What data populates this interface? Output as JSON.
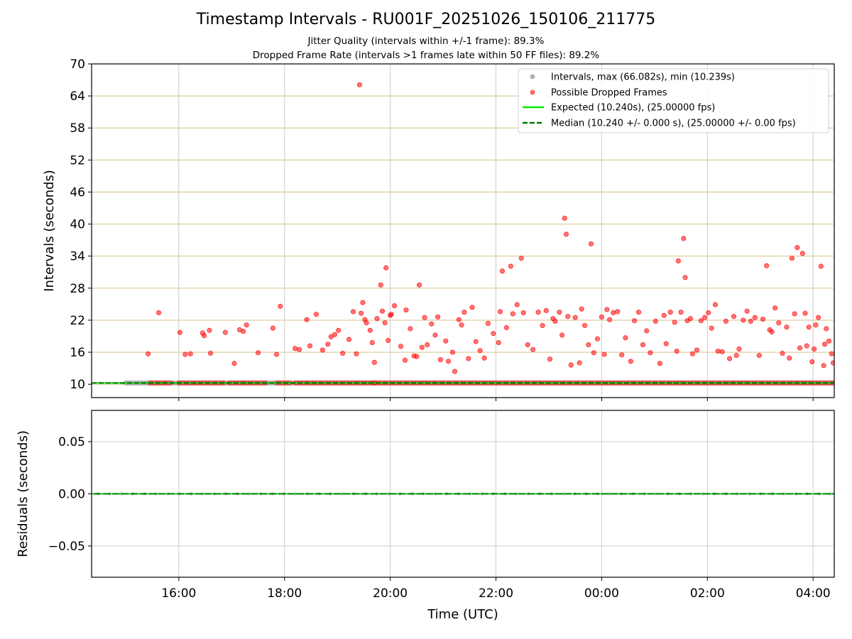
{
  "title": "Timestamp Intervals - RU001F_20251026_150106_211775",
  "subtitle1": "Jitter Quality (intervals within +/-1 frame): 89.3%",
  "subtitle2": "Dropped Frame Rate (intervals >1 frames late within 50 FF files): 89.2%",
  "colors": {
    "intervals": "#a0a0a0",
    "dropped": "#ff0000",
    "expected": "#00ee00",
    "median": "#007800",
    "hgrid_top": "#d4c08a",
    "vgrid": "#cccccc"
  },
  "chart_data": [
    {
      "type": "scatter",
      "name": "intervals-panel",
      "ylabel": "Intervals (seconds)",
      "xlabel": "",
      "xlim_hours": [
        14.35,
        28.4
      ],
      "ylim": [
        7.5,
        70
      ],
      "yticks": [
        10,
        16,
        22,
        28,
        34,
        40,
        46,
        52,
        58,
        64,
        70
      ],
      "ytick_labels": [
        "10",
        "16",
        "22",
        "28",
        "34",
        "40",
        "46",
        "52",
        "58",
        "64",
        "70"
      ],
      "xticks_hours": [
        16,
        18,
        20,
        22,
        24,
        26,
        28
      ],
      "xtick_labels": [
        "16:00",
        "18:00",
        "20:00",
        "22:00",
        "00:00",
        "02:00",
        "04:00"
      ],
      "grid": "both",
      "legend_position": "top-right",
      "legend": [
        "Intervals, max (66.082s), min (10.239s)",
        "Possible Dropped Frames",
        "Expected (10.240s), (25.00000 fps)",
        "Median (10.240 +/- 0.000 s), (25.00000 +/- 0.00 fps)"
      ],
      "expected_value": 10.24,
      "median_value": 10.24,
      "interval_series": {
        "name": "Intervals",
        "x_start_hours": 15.0,
        "x_end_hours": 28.4,
        "value": 10.24
      },
      "dropped_baseline": {
        "name": "Possible Dropped Frames (near expected)",
        "value": 10.24,
        "segments_hours": [
          [
            15.45,
            15.85
          ],
          [
            16.0,
            16.3
          ],
          [
            16.35,
            16.85
          ],
          [
            16.95,
            17.65
          ],
          [
            17.85,
            18.1
          ],
          [
            18.2,
            19.7
          ],
          [
            19.7,
            28.4
          ]
        ]
      },
      "dropped_points": [
        [
          15.42,
          15.7
        ],
        [
          15.62,
          23.4
        ],
        [
          16.02,
          19.7
        ],
        [
          16.12,
          15.6
        ],
        [
          16.22,
          15.7
        ],
        [
          16.45,
          19.6
        ],
        [
          16.48,
          19.1
        ],
        [
          16.58,
          20.1
        ],
        [
          16.6,
          15.8
        ],
        [
          16.88,
          19.7
        ],
        [
          17.05,
          13.9
        ],
        [
          17.15,
          20.2
        ],
        [
          17.22,
          19.9
        ],
        [
          17.28,
          21.1
        ],
        [
          17.5,
          15.9
        ],
        [
          17.78,
          20.5
        ],
        [
          17.85,
          15.6
        ],
        [
          17.92,
          24.6
        ],
        [
          18.2,
          16.7
        ],
        [
          18.28,
          16.5
        ],
        [
          18.42,
          22.1
        ],
        [
          18.48,
          17.2
        ],
        [
          18.6,
          23.1
        ],
        [
          18.72,
          16.4
        ],
        [
          18.82,
          17.5
        ],
        [
          18.88,
          18.9
        ],
        [
          18.95,
          19.3
        ],
        [
          19.02,
          20.1
        ],
        [
          19.1,
          15.8
        ],
        [
          19.22,
          18.4
        ],
        [
          19.3,
          23.6
        ],
        [
          19.36,
          15.7
        ],
        [
          19.42,
          66.1
        ],
        [
          19.45,
          23.3
        ],
        [
          19.48,
          25.3
        ],
        [
          19.52,
          22.1
        ],
        [
          19.55,
          21.5
        ],
        [
          19.62,
          20.1
        ],
        [
          19.66,
          17.8
        ],
        [
          19.7,
          14.1
        ],
        [
          19.75,
          22.3
        ],
        [
          19.82,
          28.6
        ],
        [
          19.85,
          23.7
        ],
        [
          19.9,
          21.5
        ],
        [
          19.92,
          31.8
        ],
        [
          19.96,
          18.2
        ],
        [
          20.0,
          22.9
        ],
        [
          20.02,
          23.1
        ],
        [
          20.08,
          24.7
        ],
        [
          20.2,
          17.1
        ],
        [
          20.28,
          14.5
        ],
        [
          20.3,
          23.9
        ],
        [
          20.38,
          20.4
        ],
        [
          20.45,
          15.3
        ],
        [
          20.5,
          15.2
        ],
        [
          20.55,
          28.6
        ],
        [
          20.6,
          16.9
        ],
        [
          20.65,
          22.5
        ],
        [
          20.7,
          17.4
        ],
        [
          20.78,
          21.3
        ],
        [
          20.85,
          19.2
        ],
        [
          20.9,
          22.6
        ],
        [
          20.95,
          14.6
        ],
        [
          21.05,
          18.1
        ],
        [
          21.1,
          14.3
        ],
        [
          21.18,
          16.0
        ],
        [
          21.22,
          12.4
        ],
        [
          21.3,
          22.1
        ],
        [
          21.35,
          21.1
        ],
        [
          21.4,
          23.5
        ],
        [
          21.48,
          14.8
        ],
        [
          21.55,
          24.4
        ],
        [
          21.62,
          18.0
        ],
        [
          21.7,
          16.3
        ],
        [
          21.78,
          14.9
        ],
        [
          21.85,
          21.4
        ],
        [
          21.95,
          19.5
        ],
        [
          22.05,
          17.8
        ],
        [
          22.08,
          23.6
        ],
        [
          22.12,
          31.2
        ],
        [
          22.2,
          20.6
        ],
        [
          22.28,
          32.1
        ],
        [
          22.32,
          23.2
        ],
        [
          22.4,
          24.9
        ],
        [
          22.48,
          33.6
        ],
        [
          22.52,
          23.4
        ],
        [
          22.6,
          17.4
        ],
        [
          22.7,
          16.5
        ],
        [
          22.8,
          23.5
        ],
        [
          22.88,
          21.0
        ],
        [
          22.95,
          23.8
        ],
        [
          23.02,
          14.7
        ],
        [
          23.08,
          22.3
        ],
        [
          23.12,
          21.8
        ],
        [
          23.2,
          23.5
        ],
        [
          23.25,
          19.2
        ],
        [
          23.3,
          41.1
        ],
        [
          23.33,
          38.1
        ],
        [
          23.36,
          22.7
        ],
        [
          23.42,
          13.6
        ],
        [
          23.5,
          22.5
        ],
        [
          23.58,
          14.0
        ],
        [
          23.62,
          24.1
        ],
        [
          23.68,
          21.0
        ],
        [
          23.75,
          17.4
        ],
        [
          23.8,
          36.3
        ],
        [
          23.85,
          15.9
        ],
        [
          23.92,
          18.5
        ],
        [
          24.0,
          22.6
        ],
        [
          24.05,
          15.6
        ],
        [
          24.1,
          24.0
        ],
        [
          24.15,
          22.1
        ],
        [
          24.22,
          23.4
        ],
        [
          24.3,
          23.6
        ],
        [
          24.38,
          15.5
        ],
        [
          24.45,
          18.7
        ],
        [
          24.55,
          14.3
        ],
        [
          24.62,
          21.9
        ],
        [
          24.7,
          23.5
        ],
        [
          24.78,
          17.4
        ],
        [
          24.85,
          20.0
        ],
        [
          24.92,
          15.9
        ],
        [
          25.02,
          21.8
        ],
        [
          25.1,
          13.9
        ],
        [
          25.18,
          22.9
        ],
        [
          25.22,
          17.6
        ],
        [
          25.3,
          23.5
        ],
        [
          25.38,
          21.6
        ],
        [
          25.42,
          16.2
        ],
        [
          25.45,
          33.1
        ],
        [
          25.5,
          23.5
        ],
        [
          25.55,
          37.3
        ],
        [
          25.58,
          30.0
        ],
        [
          25.62,
          21.9
        ],
        [
          25.68,
          22.3
        ],
        [
          25.72,
          15.7
        ],
        [
          25.8,
          16.4
        ],
        [
          25.88,
          21.9
        ],
        [
          25.95,
          22.5
        ],
        [
          26.02,
          23.4
        ],
        [
          26.08,
          20.5
        ],
        [
          26.15,
          24.9
        ],
        [
          26.2,
          16.2
        ],
        [
          26.28,
          16.1
        ],
        [
          26.35,
          21.8
        ],
        [
          26.42,
          14.8
        ],
        [
          26.5,
          22.7
        ],
        [
          26.55,
          15.4
        ],
        [
          26.6,
          16.6
        ],
        [
          26.68,
          22.0
        ],
        [
          26.75,
          23.7
        ],
        [
          26.82,
          21.8
        ],
        [
          26.9,
          22.5
        ],
        [
          26.98,
          15.4
        ],
        [
          27.05,
          22.2
        ],
        [
          27.12,
          32.2
        ],
        [
          27.18,
          20.2
        ],
        [
          27.22,
          19.8
        ],
        [
          27.28,
          24.3
        ],
        [
          27.35,
          21.5
        ],
        [
          27.42,
          15.8
        ],
        [
          27.5,
          20.7
        ],
        [
          27.55,
          14.9
        ],
        [
          27.6,
          33.6
        ],
        [
          27.65,
          23.2
        ],
        [
          27.7,
          35.6
        ],
        [
          27.75,
          16.8
        ],
        [
          27.8,
          34.5
        ],
        [
          27.85,
          23.3
        ],
        [
          27.88,
          17.2
        ],
        [
          27.92,
          20.7
        ],
        [
          27.98,
          14.2
        ],
        [
          28.02,
          16.6
        ],
        [
          28.05,
          21.1
        ],
        [
          28.1,
          22.5
        ],
        [
          28.15,
          32.1
        ],
        [
          28.2,
          13.5
        ],
        [
          28.22,
          17.5
        ],
        [
          28.25,
          20.4
        ],
        [
          28.3,
          18.1
        ],
        [
          28.35,
          15.7
        ],
        [
          28.38,
          14.0
        ]
      ]
    },
    {
      "type": "line",
      "name": "residuals-panel",
      "ylabel": "Residuals (seconds)",
      "xlabel": "Time (UTC)",
      "xlim_hours": [
        14.35,
        28.4
      ],
      "ylim": [
        -0.08,
        0.08
      ],
      "yticks": [
        -0.05,
        0.0,
        0.05
      ],
      "ytick_labels": [
        "−0.05",
        "0.00",
        "0.05"
      ],
      "xticks_hours": [
        16,
        18,
        20,
        22,
        24,
        26,
        28
      ],
      "xtick_labels": [
        "16:00",
        "18:00",
        "20:00",
        "22:00",
        "00:00",
        "02:00",
        "04:00"
      ],
      "grid": "both",
      "residual_value": 0.0,
      "marker_spacing_hours": 0.22
    }
  ]
}
